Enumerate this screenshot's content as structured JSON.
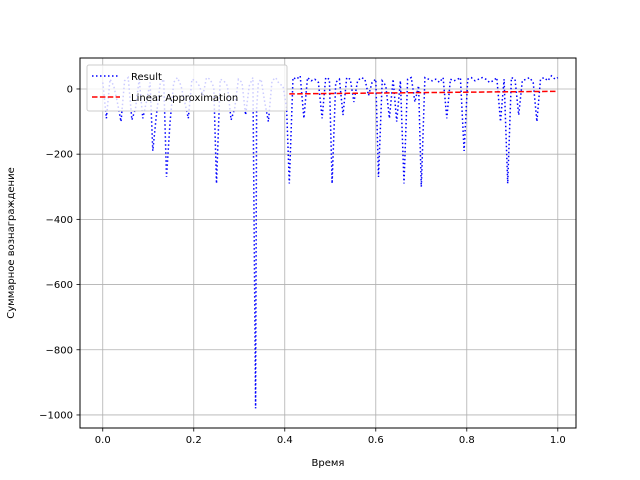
{
  "chart_data": {
    "type": "line",
    "xlabel": "Время",
    "ylabel": "Суммарное вознаграждение",
    "xlim": [
      -0.05,
      1.04
    ],
    "ylim": [
      -1040,
      95
    ],
    "xticks": [
      0.0,
      0.2,
      0.4,
      0.6,
      0.8,
      1.0
    ],
    "xtick_labels": [
      "0.0",
      "0.2",
      "0.4",
      "0.6",
      "0.8",
      "1.0"
    ],
    "yticks": [
      0,
      -200,
      -400,
      -600,
      -800,
      -1000
    ],
    "ytick_labels": [
      "0",
      "−200",
      "−400",
      "−600",
      "−800",
      "−1000"
    ],
    "grid": true,
    "legend_position": "upper-left",
    "series": [
      {
        "name": "Result",
        "style": "dotted",
        "color": "#0000ff",
        "x": [
          0.0,
          0.008,
          0.016,
          0.024,
          0.032,
          0.04,
          0.048,
          0.056,
          0.064,
          0.072,
          0.08,
          0.088,
          0.096,
          0.104,
          0.11,
          0.118,
          0.126,
          0.134,
          0.14,
          0.148,
          0.156,
          0.164,
          0.172,
          0.18,
          0.188,
          0.196,
          0.204,
          0.212,
          0.22,
          0.228,
          0.236,
          0.244,
          0.25,
          0.258,
          0.266,
          0.274,
          0.282,
          0.29,
          0.298,
          0.306,
          0.314,
          0.322,
          0.33,
          0.336,
          0.338,
          0.342,
          0.348,
          0.356,
          0.364,
          0.372,
          0.38,
          0.388,
          0.396,
          0.404,
          0.41,
          0.418,
          0.426,
          0.434,
          0.442,
          0.45,
          0.458,
          0.466,
          0.474,
          0.482,
          0.49,
          0.498,
          0.504,
          0.512,
          0.52,
          0.528,
          0.536,
          0.544,
          0.552,
          0.56,
          0.568,
          0.576,
          0.584,
          0.592,
          0.6,
          0.606,
          0.614,
          0.622,
          0.63,
          0.638,
          0.646,
          0.654,
          0.662,
          0.67,
          0.678,
          0.686,
          0.694,
          0.7,
          0.708,
          0.716,
          0.724,
          0.732,
          0.74,
          0.748,
          0.756,
          0.764,
          0.772,
          0.78,
          0.786,
          0.794,
          0.802,
          0.81,
          0.818,
          0.826,
          0.834,
          0.842,
          0.85,
          0.858,
          0.866,
          0.874,
          0.882,
          0.89,
          0.898,
          0.906,
          0.914,
          0.922,
          0.93,
          0.938,
          0.946,
          0.954,
          0.962,
          0.97,
          0.978,
          0.986,
          0.994,
          1.0
        ],
        "y": [
          20,
          -90,
          30,
          10,
          -40,
          -100,
          25,
          35,
          -95,
          -60,
          30,
          -90,
          -40,
          20,
          -190,
          -80,
          15,
          30,
          -270,
          -100,
          20,
          35,
          10,
          -40,
          -90,
          30,
          25,
          10,
          -20,
          35,
          30,
          5,
          -290,
          30,
          25,
          10,
          -95,
          -60,
          30,
          20,
          -80,
          10,
          35,
          -980,
          -60,
          20,
          30,
          -40,
          -100,
          25,
          35,
          15,
          10,
          -60,
          -290,
          35,
          30,
          40,
          -90,
          35,
          25,
          30,
          20,
          -90,
          35,
          30,
          -290,
          20,
          30,
          -80,
          35,
          30,
          -40,
          25,
          35,
          30,
          -20,
          20,
          30,
          -270,
          25,
          10,
          -90,
          30,
          -100,
          25,
          -290,
          30,
          35,
          -40,
          10,
          -300,
          35,
          30,
          25,
          30,
          20,
          35,
          -90,
          30,
          25,
          30,
          35,
          -190,
          30,
          35,
          25,
          30,
          35,
          30,
          20,
          25,
          35,
          -100,
          30,
          -290,
          35,
          30,
          -80,
          25,
          30,
          35,
          20,
          -100,
          30,
          35,
          25,
          40,
          30,
          35
        ]
      },
      {
        "name": "Linear Approximation",
        "style": "dashed",
        "color": "#ff0000",
        "x": [
          0.41,
          1.0
        ],
        "y": [
          -15,
          -7
        ]
      }
    ]
  }
}
